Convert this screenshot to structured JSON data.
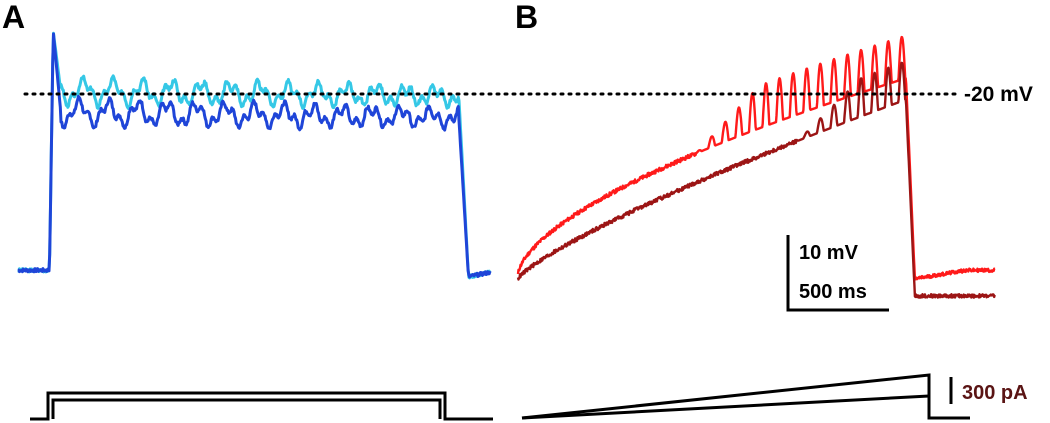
{
  "panels": [
    {
      "letter": "A"
    },
    {
      "letter": "B"
    }
  ],
  "reference_line": {
    "label": "-20 mV",
    "style": "dotted"
  },
  "scale_bars": {
    "voltage": "10 mV",
    "time": "500 ms",
    "current": "300 pA"
  },
  "colors": {
    "a_trace_light": "#35c8e6",
    "a_trace_dark": "#1f45d8",
    "b_trace_red": "#ff1a1a",
    "b_trace_dark": "#9c1515",
    "stimulus": "#000000",
    "current_label": "#5a1414"
  },
  "chart_data": [
    {
      "type": "line",
      "panel": "A",
      "title": "",
      "xlabel": "",
      "ylabel": "",
      "description_units": {
        "x": "ms",
        "y": "mV"
      },
      "xlim": [
        0,
        3750
      ],
      "ylim": [
        -80,
        -5
      ],
      "series": [
        {
          "name": "",
          "color_key": "a_trace_light",
          "step_onset": 250,
          "step_offset": 3500,
          "baseline": -66,
          "plateau": -24,
          "peak": -10,
          "osc_amp": 2.5,
          "seed": 3
        },
        {
          "name": "",
          "color_key": "a_trace_dark",
          "step_onset": 250,
          "step_offset": 3500,
          "baseline": -66,
          "plateau": -29,
          "peak": -10,
          "osc_amp": 2.5,
          "seed": 7
        }
      ],
      "stimulus": {
        "type": "step",
        "onset_ms": 250,
        "offset_ms": 3500,
        "levels_pA": [
          330,
          300
        ]
      }
    },
    {
      "type": "line",
      "panel": "B",
      "title": "",
      "xlabel": "",
      "ylabel": "",
      "description_units": {
        "x": "ms",
        "y": "mV"
      },
      "xlim": [
        0,
        3750
      ],
      "ylim": [
        -80,
        -5
      ],
      "series": [
        {
          "name": "",
          "color_key": "b_trace_red",
          "ramp_end_ms": 3050,
          "start": -67,
          "plateau": -21,
          "spike_peak": -11,
          "spike_onset_ms": 1400,
          "final": -68
        },
        {
          "name": "",
          "color_key": "b_trace_dark",
          "ramp_end_ms": 3050,
          "start": -68,
          "plateau": -26,
          "spike_peak": -17,
          "spike_onset_ms": 2200,
          "final": -72
        }
      ],
      "stimulus": {
        "type": "ramp",
        "onset_ms": 0,
        "offset_ms": 3050,
        "peak_pA": [
          320,
          150
        ]
      }
    }
  ]
}
